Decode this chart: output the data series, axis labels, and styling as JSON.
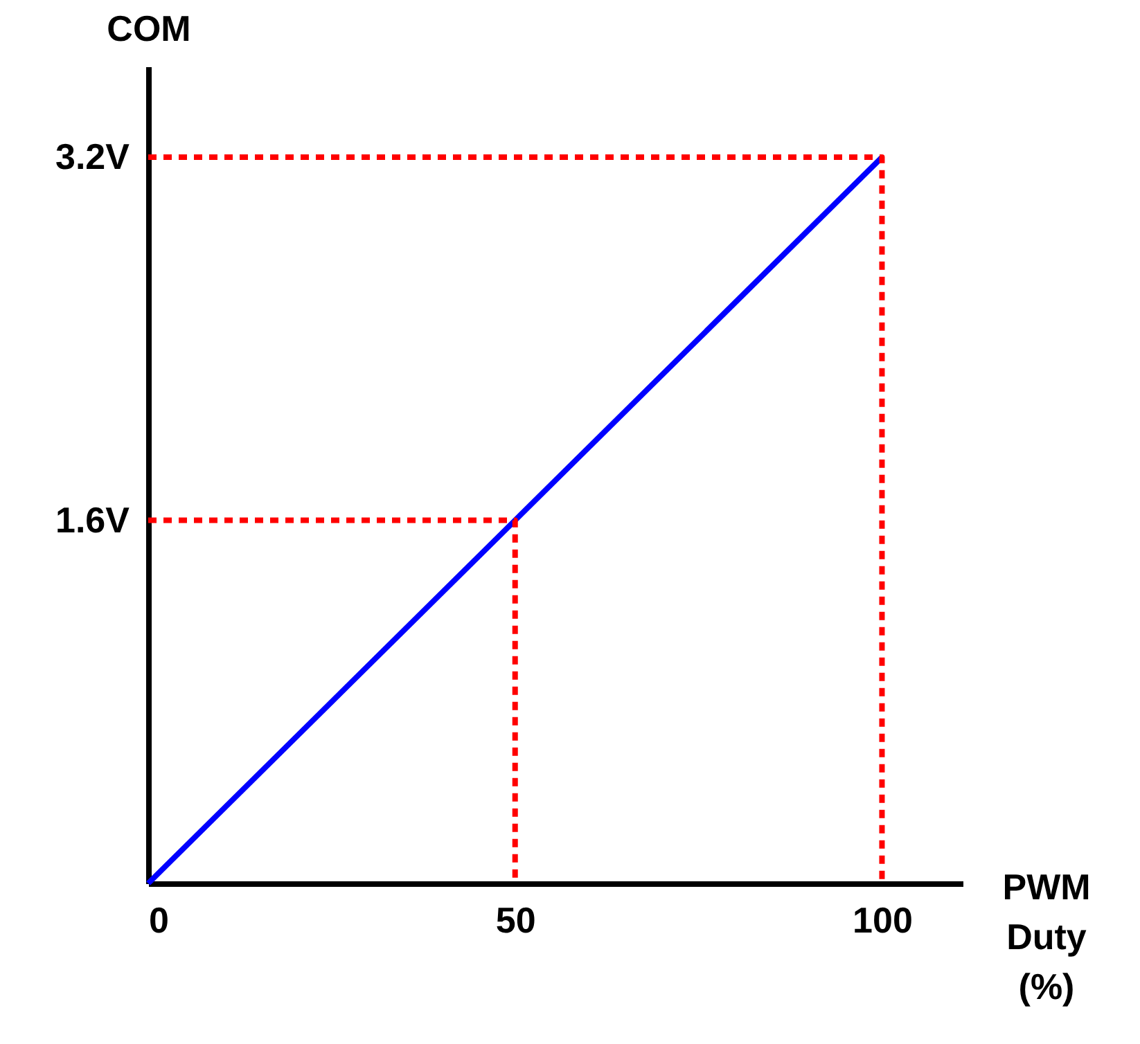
{
  "chart_data": {
    "type": "line",
    "xlabel": "PWM Duty (%)",
    "ylabel": "COM",
    "xlim": [
      0,
      111
    ],
    "ylim": [
      0,
      3.6
    ],
    "xticks": [
      0,
      50,
      100
    ],
    "yticks": [
      {
        "value": 1.6,
        "label": "1.6V"
      },
      {
        "value": 3.2,
        "label": "3.2V"
      }
    ],
    "grid": false,
    "marker": "none",
    "series": [
      {
        "x": [
          0,
          100
        ],
        "values": [
          0,
          3.2
        ],
        "color": "#0000ff",
        "line_style": "solid"
      },
      {
        "x": [
          0,
          50,
          50
        ],
        "values": [
          1.6,
          1.6,
          0
        ],
        "color": "#ff0000",
        "line_style": "dashed"
      },
      {
        "x": [
          0,
          100,
          100
        ],
        "values": [
          3.2,
          3.2,
          0
        ],
        "color": "#ff0000",
        "line_style": "dashed"
      }
    ]
  }
}
